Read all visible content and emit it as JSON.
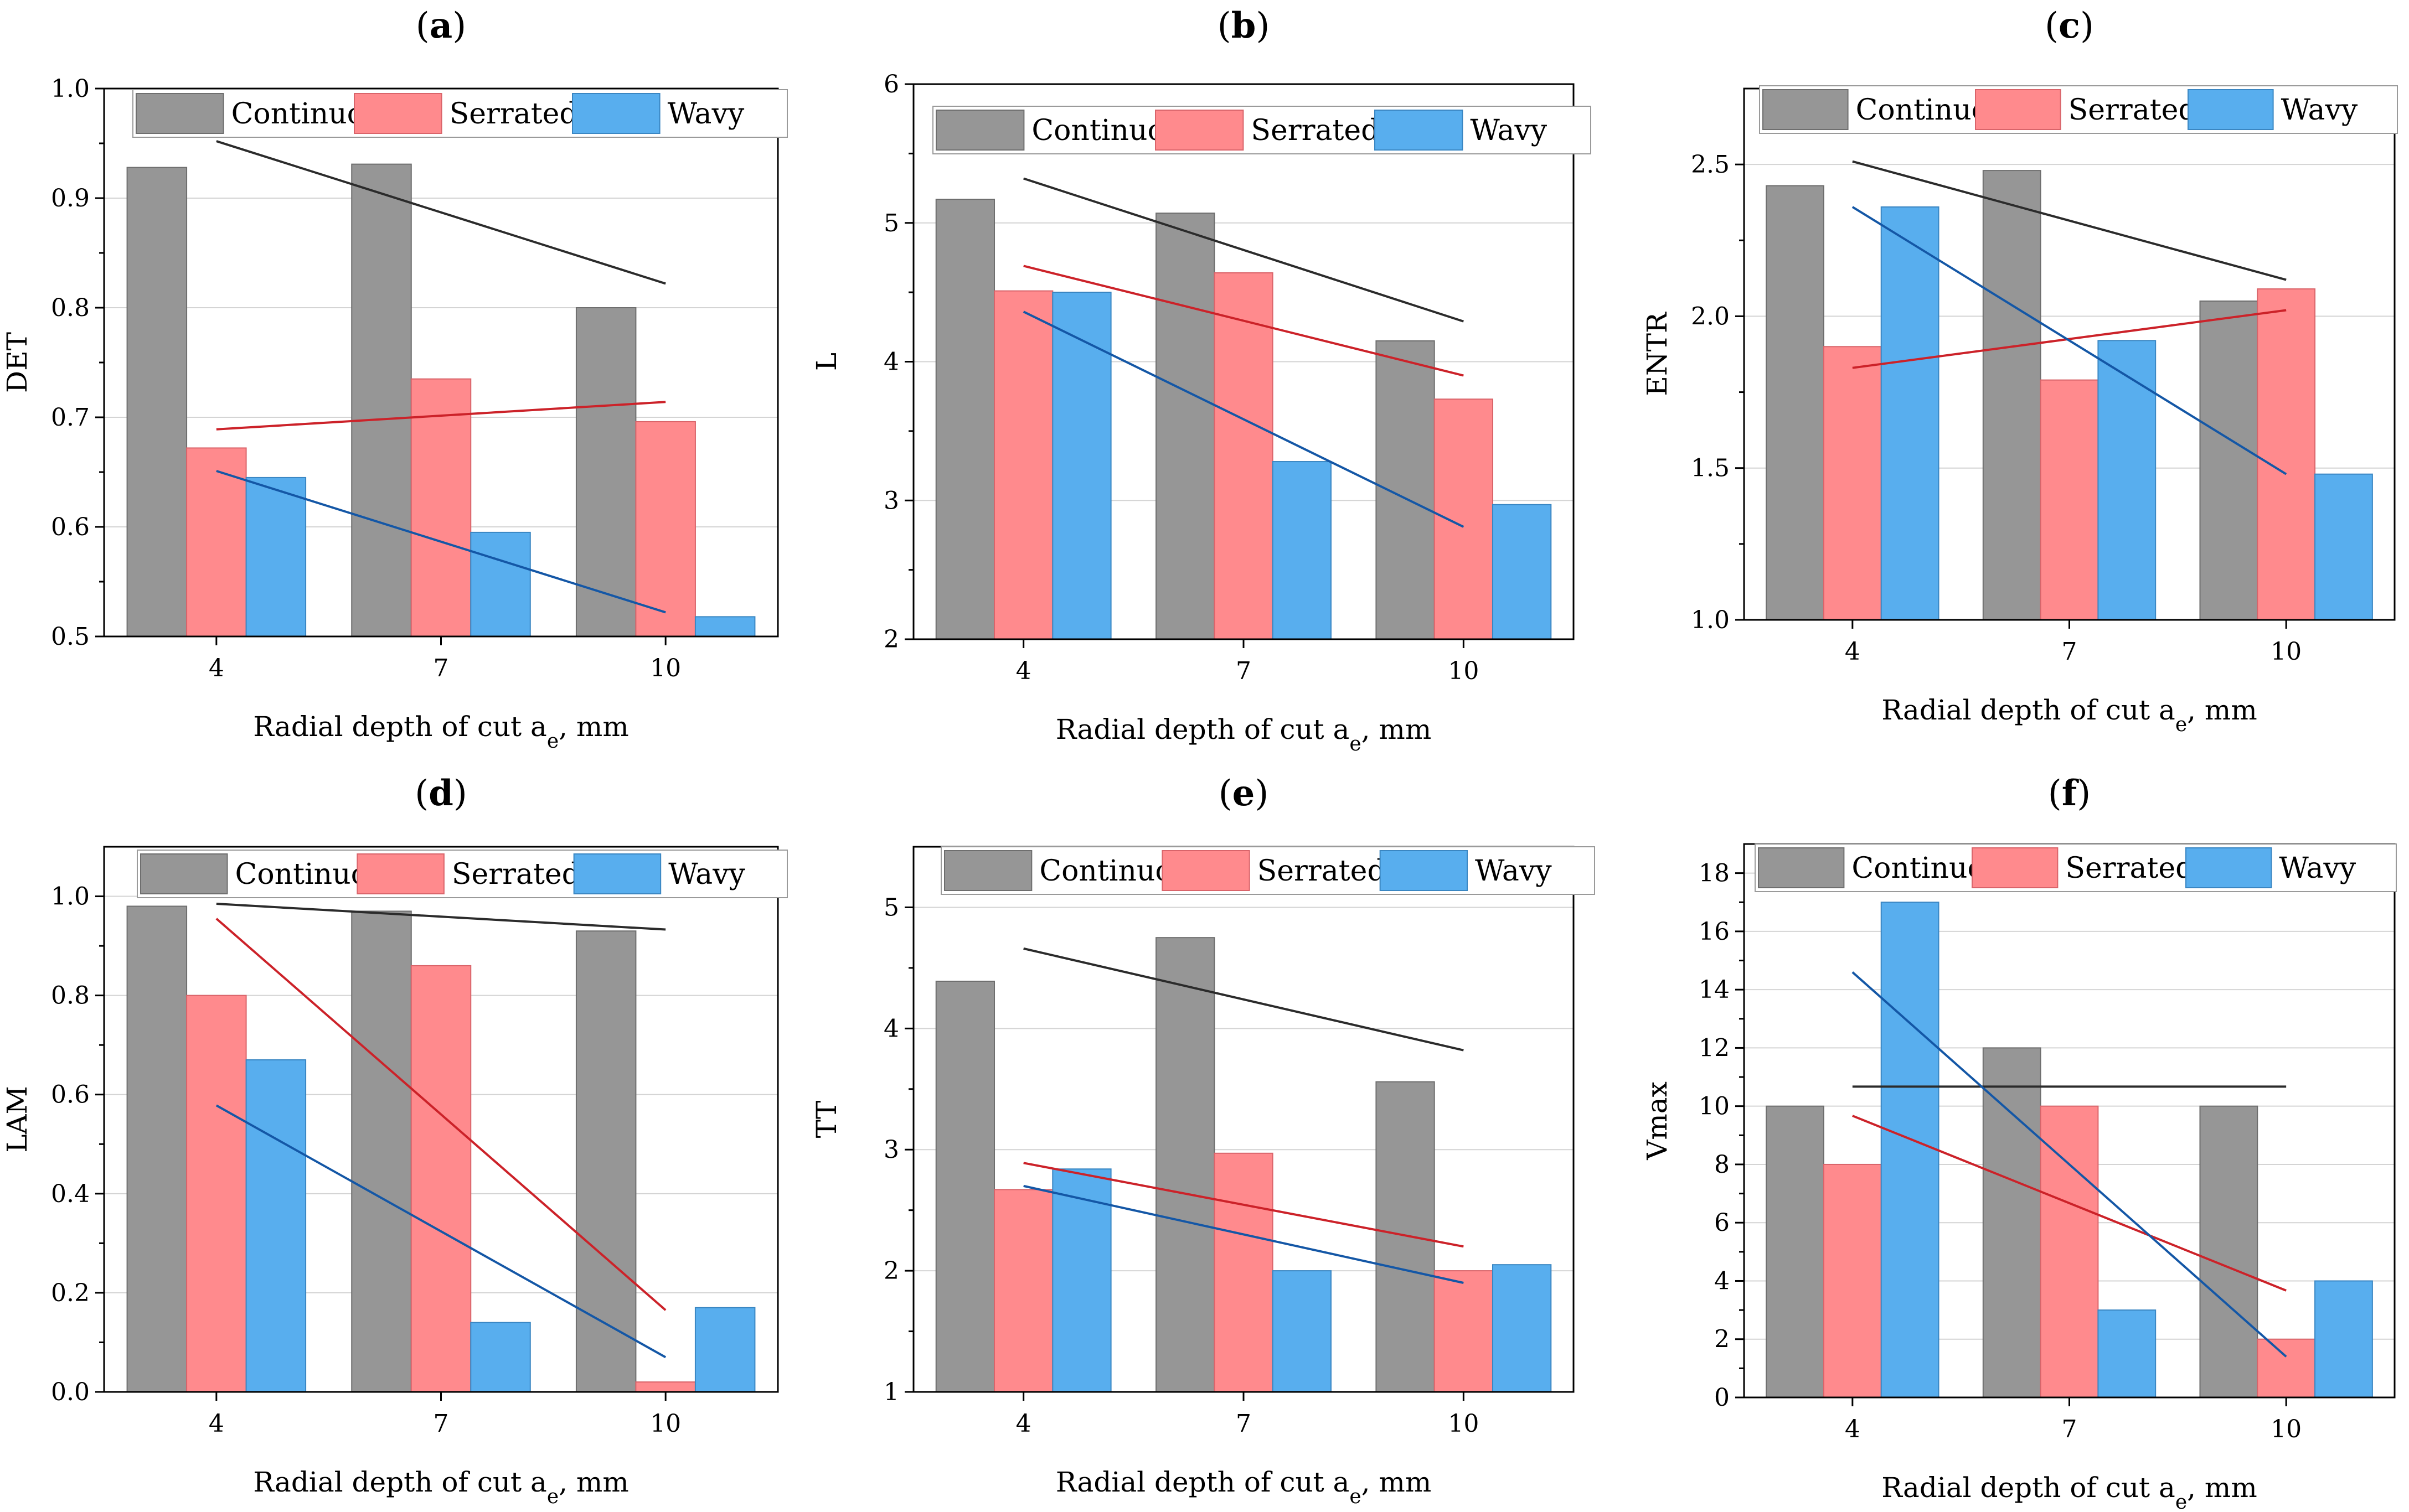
{
  "colors": {
    "continuous": "#969696",
    "serrated": "#ff8a8d",
    "wavy": "#58aeee",
    "continuous_edge": "#6e6e6e",
    "serrated_edge": "#d9646a",
    "wavy_edge": "#3a86c2",
    "trend_continuous": "#2b2b2b",
    "trend_serrated": "#cc2229",
    "trend_wavy": "#1457a6"
  },
  "chart_data": [
    {
      "panel": "(a)",
      "letter": "a",
      "type": "bar",
      "categories": [
        "4",
        "7",
        "10"
      ],
      "series": [
        {
          "name": "Continuous",
          "values": [
            0.928,
            0.931,
            0.8
          ]
        },
        {
          "name": "Serrated",
          "values": [
            0.672,
            0.735,
            0.696
          ]
        },
        {
          "name": "Wavy",
          "values": [
            0.645,
            0.595,
            0.518
          ]
        }
      ],
      "trends": [
        {
          "series": "Continuous",
          "start": 0.952,
          "end": 0.822
        },
        {
          "series": "Serrated",
          "start": 0.689,
          "end": 0.714
        },
        {
          "series": "Wavy",
          "start": 0.651,
          "end": 0.522
        }
      ],
      "ylim": [
        0.5,
        1.0
      ],
      "yticks": [
        "0.5",
        "0.6",
        "0.7",
        "0.8",
        "0.9",
        "1.0"
      ],
      "ytick_values": [
        0.5,
        0.6,
        0.7,
        0.8,
        0.9,
        1.0
      ],
      "ylabel": "DET",
      "xlabel": "Radial depth of cut a",
      "xlabel_sub": "e",
      "xlabel_tail": ", mm",
      "legend": [
        "Continuous",
        "Serrated",
        "Wavy"
      ],
      "legend_position": "top",
      "grid": true
    },
    {
      "panel": "(b)",
      "letter": "b",
      "type": "bar",
      "categories": [
        "4",
        "7",
        "10"
      ],
      "series": [
        {
          "name": "Continuous",
          "values": [
            5.17,
            5.07,
            4.15
          ]
        },
        {
          "name": "Serrated",
          "values": [
            4.51,
            4.64,
            3.73
          ]
        },
        {
          "name": "Wavy",
          "values": [
            4.5,
            3.28,
            2.97
          ]
        }
      ],
      "trends": [
        {
          "series": "Continuous",
          "start": 5.32,
          "end": 4.29
        },
        {
          "series": "Serrated",
          "start": 4.69,
          "end": 3.9
        },
        {
          "series": "Wavy",
          "start": 4.36,
          "end": 2.81
        }
      ],
      "ylim": [
        2,
        6
      ],
      "yticks": [
        "2",
        "3",
        "4",
        "5",
        "6"
      ],
      "ytick_values": [
        2,
        3,
        4,
        5,
        6
      ],
      "ylabel": "L",
      "xlabel": "Radial depth of cut a",
      "xlabel_sub": "e",
      "xlabel_tail": ", mm",
      "legend": [
        "Continuous",
        "Serrated",
        "Wavy"
      ],
      "legend_position": "top",
      "grid": true
    },
    {
      "panel": "(c)",
      "letter": "c",
      "type": "bar",
      "categories": [
        "4",
        "7",
        "10"
      ],
      "series": [
        {
          "name": "Continuous",
          "values": [
            2.43,
            2.48,
            2.05
          ]
        },
        {
          "name": "Serrated",
          "values": [
            1.9,
            1.79,
            2.09
          ]
        },
        {
          "name": "Wavy",
          "values": [
            2.36,
            1.92,
            1.48
          ]
        }
      ],
      "trends": [
        {
          "series": "Continuous",
          "start": 2.51,
          "end": 2.12
        },
        {
          "series": "Serrated",
          "start": 1.83,
          "end": 2.02
        },
        {
          "series": "Wavy",
          "start": 2.36,
          "end": 1.48
        }
      ],
      "ylim": [
        1.0,
        2.75
      ],
      "yticks": [
        "1.0",
        "1.5",
        "2.0",
        "2.5"
      ],
      "ytick_values": [
        1.0,
        1.5,
        2.0,
        2.5
      ],
      "ylabel": "ENTR",
      "xlabel": "Radial depth of cut a",
      "xlabel_sub": "e",
      "xlabel_tail": ", mm",
      "legend": [
        "Continuous",
        "Serrated",
        "Wavy"
      ],
      "legend_position": "top",
      "grid": true
    },
    {
      "panel": "(d)",
      "letter": "d",
      "type": "bar",
      "categories": [
        "4",
        "7",
        "10"
      ],
      "series": [
        {
          "name": "Continuous",
          "values": [
            0.98,
            0.97,
            0.93
          ]
        },
        {
          "name": "Serrated",
          "values": [
            0.8,
            0.86,
            0.02
          ]
        },
        {
          "name": "Wavy",
          "values": [
            0.67,
            0.14,
            0.17
          ]
        }
      ],
      "trends": [
        {
          "series": "Continuous",
          "start": 0.985,
          "end": 0.933
        },
        {
          "series": "Serrated",
          "start": 0.955,
          "end": 0.165
        },
        {
          "series": "Wavy",
          "start": 0.578,
          "end": 0.07
        }
      ],
      "ylim": [
        0.0,
        1.1
      ],
      "yticks": [
        "0.0",
        "0.2",
        "0.4",
        "0.6",
        "0.8",
        "1.0"
      ],
      "ytick_values": [
        0.0,
        0.2,
        0.4,
        0.6,
        0.8,
        1.0
      ],
      "ylabel": "LAM",
      "xlabel": "Radial depth of cut a",
      "xlabel_sub": "e",
      "xlabel_tail": ", mm",
      "legend": [
        "Continuous",
        "Serrated",
        "Wavy"
      ],
      "legend_position": "top",
      "grid": true
    },
    {
      "panel": "(e)",
      "letter": "e",
      "type": "bar",
      "categories": [
        "4",
        "7",
        "10"
      ],
      "series": [
        {
          "name": "Continuous",
          "values": [
            4.39,
            4.75,
            3.56
          ]
        },
        {
          "name": "Serrated",
          "values": [
            2.67,
            2.97,
            2.0
          ]
        },
        {
          "name": "Wavy",
          "values": [
            2.84,
            2.0,
            2.05
          ]
        }
      ],
      "trends": [
        {
          "series": "Continuous",
          "start": 4.66,
          "end": 3.82
        },
        {
          "series": "Serrated",
          "start": 2.89,
          "end": 2.2
        },
        {
          "series": "Wavy",
          "start": 2.7,
          "end": 1.9
        }
      ],
      "ylim": [
        1,
        5.5
      ],
      "yticks": [
        "1",
        "2",
        "3",
        "4",
        "5"
      ],
      "ytick_values": [
        1,
        2,
        3,
        4,
        5
      ],
      "ylabel": "TT",
      "xlabel": "Radial depth of cut a",
      "xlabel_sub": "e",
      "xlabel_tail": ", mm",
      "legend": [
        "Continuous",
        "Serrated",
        "Wavy"
      ],
      "legend_position": "top",
      "grid": true
    },
    {
      "panel": "(f)",
      "letter": "f",
      "type": "bar",
      "categories": [
        "4",
        "7",
        "10"
      ],
      "series": [
        {
          "name": "Continuous",
          "values": [
            10,
            12,
            10
          ]
        },
        {
          "name": "Serrated",
          "values": [
            8,
            10,
            2
          ]
        },
        {
          "name": "Wavy",
          "values": [
            17,
            3,
            4
          ]
        }
      ],
      "trends": [
        {
          "series": "Continuous",
          "start": 10.67,
          "end": 10.67
        },
        {
          "series": "Serrated",
          "start": 9.67,
          "end": 3.67
        },
        {
          "series": "Wavy",
          "start": 14.6,
          "end": 1.4
        }
      ],
      "ylim": [
        0,
        19
      ],
      "yticks": [
        "0",
        "2",
        "4",
        "6",
        "8",
        "10",
        "12",
        "14",
        "16",
        "18"
      ],
      "ytick_values": [
        0,
        2,
        4,
        6,
        8,
        10,
        12,
        14,
        16,
        18
      ],
      "ylabel": "Vmax",
      "xlabel": "Radial depth of cut a",
      "xlabel_sub": "e",
      "xlabel_tail": ", mm",
      "legend": [
        "Continuous",
        "Serrated",
        "Wavy"
      ],
      "legend_position": "top",
      "grid": true
    }
  ]
}
